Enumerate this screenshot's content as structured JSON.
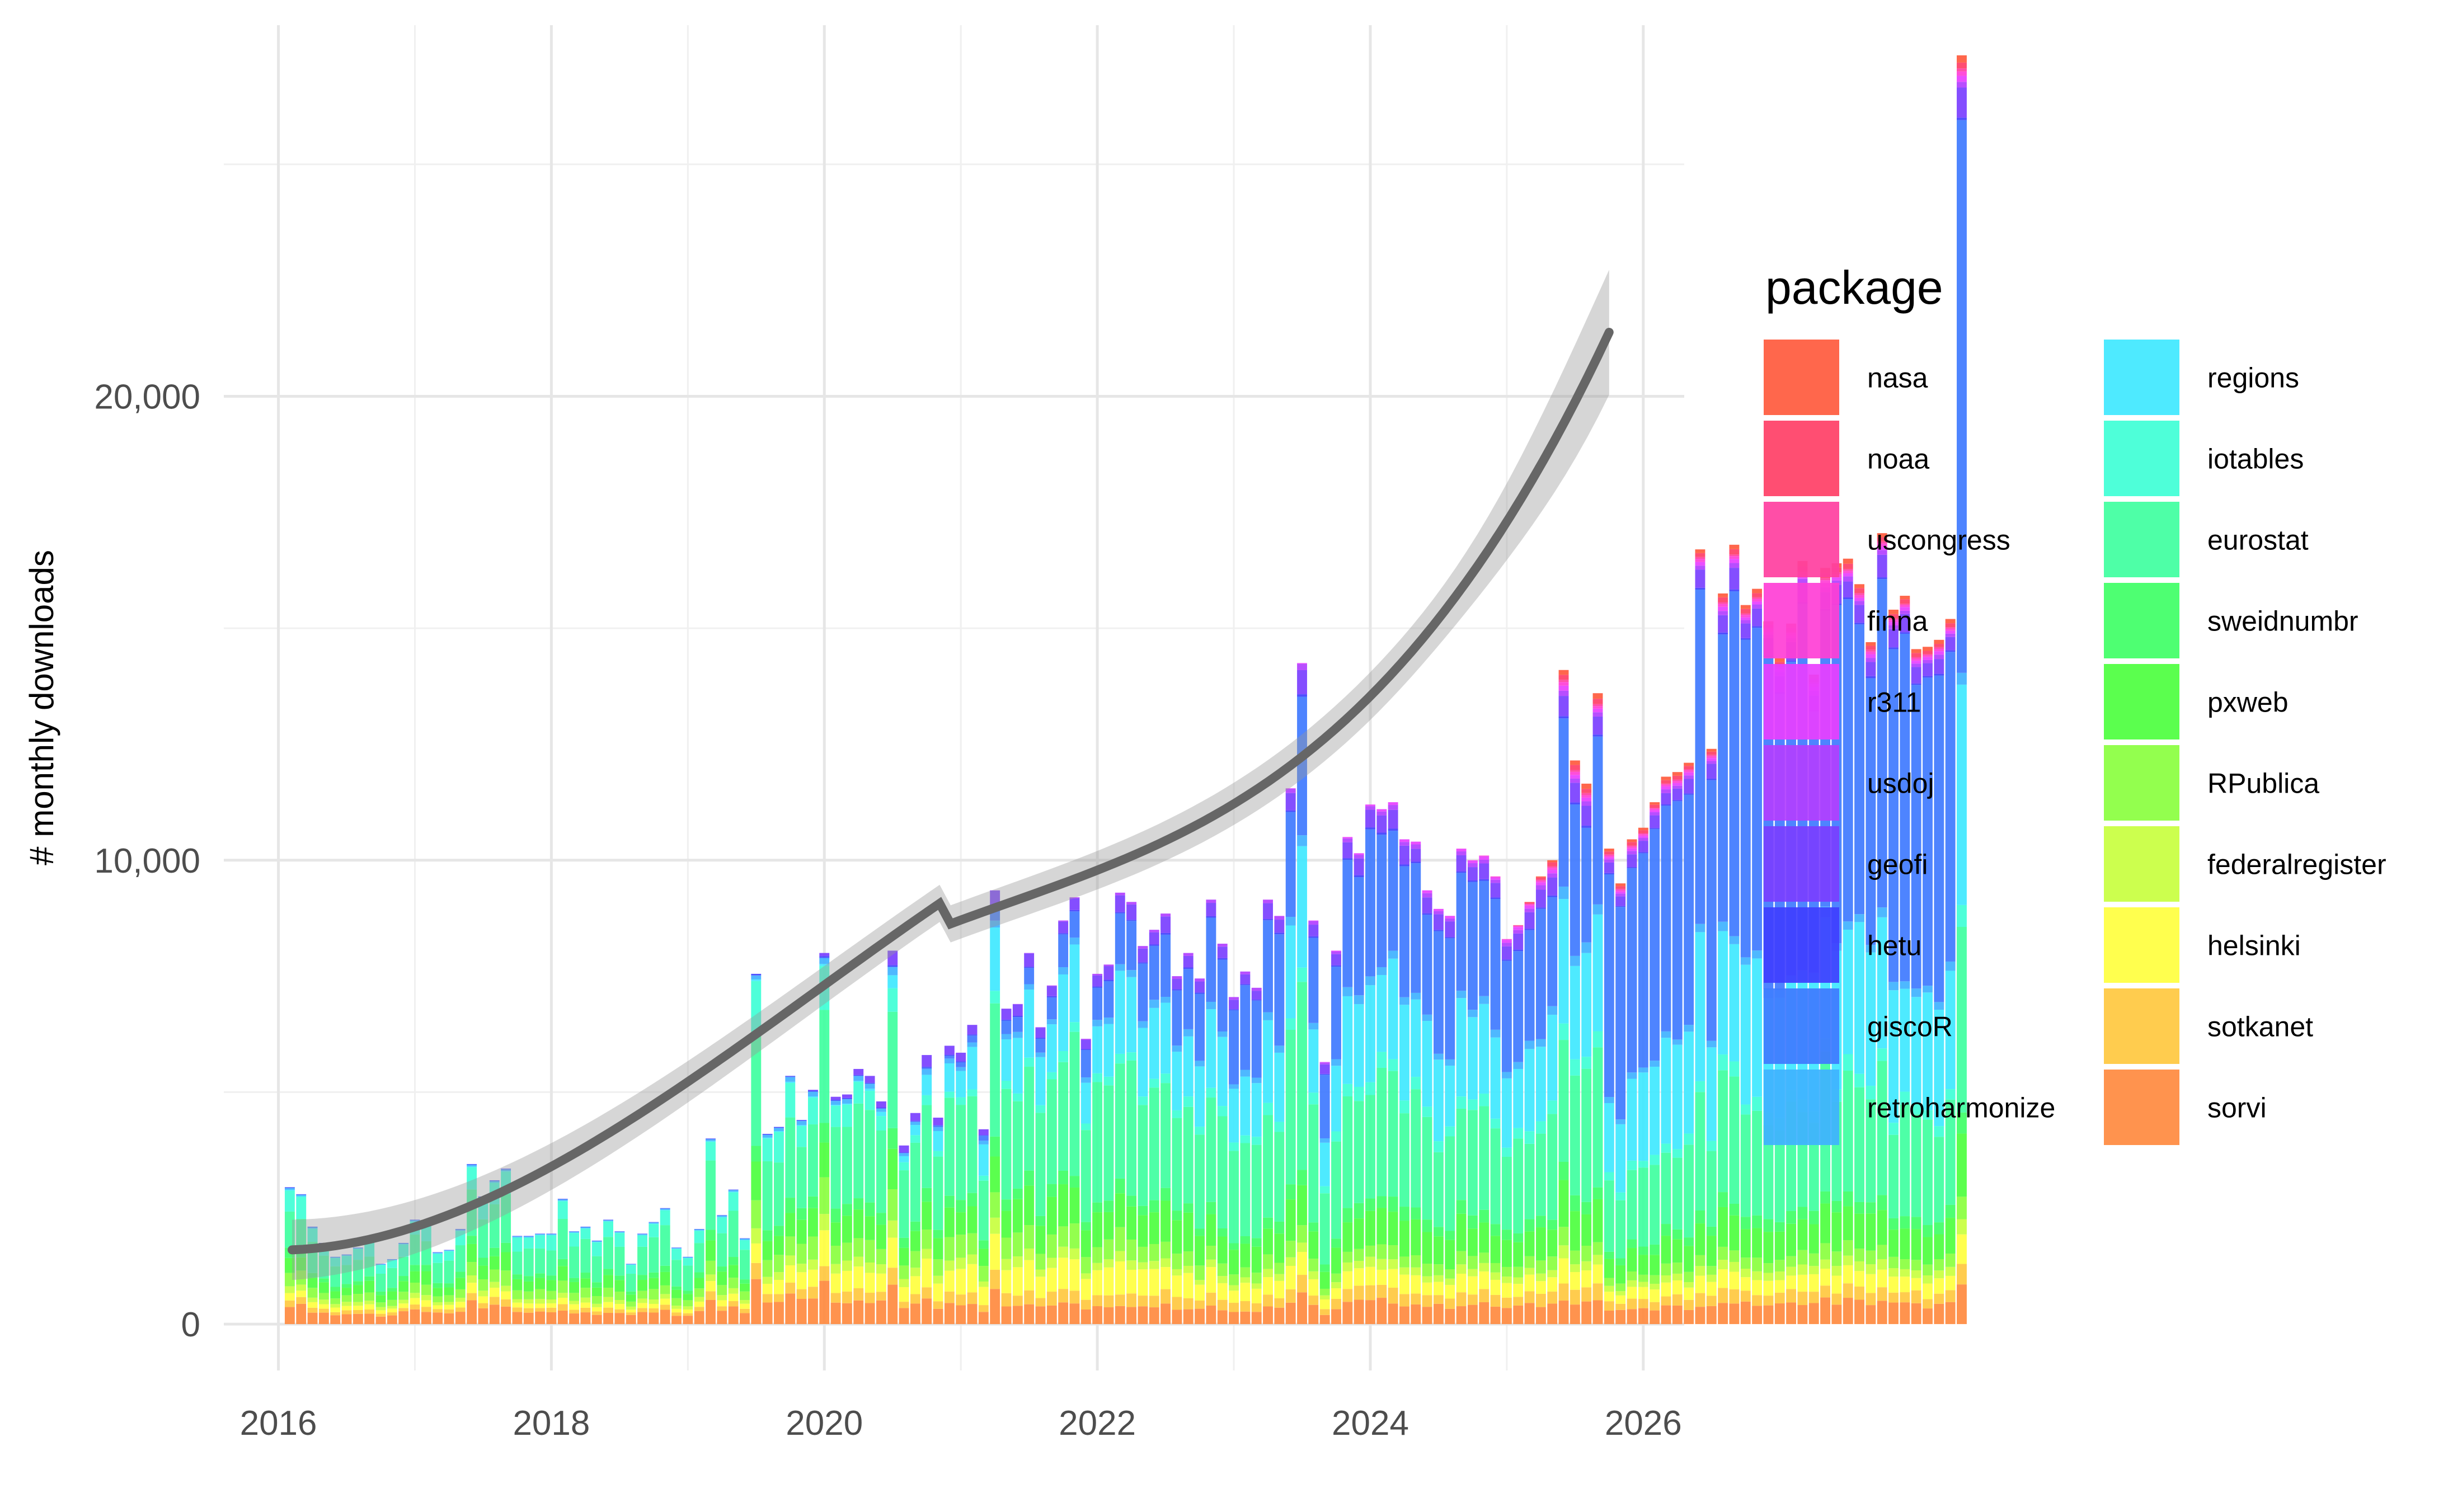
{
  "chart_data": {
    "type": "bar",
    "stacked": true,
    "title": "",
    "xlabel": "",
    "ylabel": "# monthly downloads",
    "xlim": [
      2015.6,
      2026.3
    ],
    "ylim": [
      -1000,
      28000
    ],
    "x_ticks": [
      2016,
      2018,
      2020,
      2022,
      2024,
      2026
    ],
    "x_tick_labels": [
      "2016",
      "2018",
      "2020",
      "2022",
      "2024",
      "2026"
    ],
    "y_ticks": [
      0,
      10000,
      20000
    ],
    "y_tick_labels": [
      "0",
      "10,000",
      "20,000"
    ],
    "grid": true,
    "legend": {
      "title": "package",
      "placement": "right",
      "columns": 2
    },
    "series": [
      {
        "name": "nasa",
        "color": "#FF5A3D"
      },
      {
        "name": "noaa",
        "color": "#FF3F66"
      },
      {
        "name": "uscongress",
        "color": "#FF3FA0"
      },
      {
        "name": "finna",
        "color": "#FF3FD6"
      },
      {
        "name": "r311",
        "color": "#E83FFF"
      },
      {
        "name": "usdoj",
        "color": "#B23FFF"
      },
      {
        "name": "geofi",
        "color": "#7A3FFF"
      },
      {
        "name": "hetu",
        "color": "#3F3FFF"
      },
      {
        "name": "giscoR",
        "color": "#3F7AFF"
      },
      {
        "name": "retroharmonize",
        "color": "#3FB2FF"
      },
      {
        "name": "regions",
        "color": "#3FE8FF"
      },
      {
        "name": "iotables",
        "color": "#3FFFD6"
      },
      {
        "name": "eurostat",
        "color": "#3FFFA0"
      },
      {
        "name": "sweidnumbr",
        "color": "#3FFF66"
      },
      {
        "name": "pxweb",
        "color": "#4DFF3F"
      },
      {
        "name": "RPublica",
        "color": "#8AFF3F"
      },
      {
        "name": "federalregister",
        "color": "#C8FF3F"
      },
      {
        "name": "helsinki",
        "color": "#FFFF3F"
      },
      {
        "name": "sotkanet",
        "color": "#FFC83F"
      },
      {
        "name": "sorvi",
        "color": "#FF8A3F"
      }
    ],
    "stack_order_bottom_to_top": [
      "sorvi",
      "sotkanet",
      "helsinki",
      "federalregister",
      "RPublica",
      "pxweb",
      "sweidnumbr",
      "eurostat",
      "iotables",
      "regions",
      "retroharmonize",
      "giscoR",
      "hetu",
      "geofi",
      "usdoj",
      "r311",
      "finna",
      "uscongress",
      "noaa",
      "nasa"
    ],
    "x_start": "2016-02",
    "bar_totals": [
      2950,
      2800,
      2100,
      1750,
      1450,
      1500,
      1650,
      1800,
      1300,
      1400,
      1750,
      2250,
      2150,
      1550,
      1600,
      2050,
      3450,
      2750,
      3100,
      3350,
      1900,
      1900,
      1950,
      1950,
      2700,
      2000,
      2100,
      1800,
      2250,
      2000,
      1300,
      1950,
      2200,
      2500,
      1650,
      1450,
      2050,
      4000,
      2350,
      2900,
      1850,
      7550,
      4100,
      4250,
      5350,
      4400,
      5050,
      8000,
      4900,
      4950,
      5500,
      5350,
      4800,
      8050,
      3850,
      4550,
      5800,
      4450,
      6000,
      5850,
      6450,
      4200,
      9350,
      6800,
      6900,
      8000,
      6400,
      7300,
      8700,
      9200,
      6150,
      7550,
      7750,
      9300,
      9100,
      8150,
      8500,
      8850,
      7500,
      8000,
      7450,
      9150,
      8200,
      7050,
      7600,
      7250,
      9150,
      8800,
      11550,
      14250,
      8700,
      5650,
      8050,
      10500,
      10150,
      11200,
      11100,
      11250,
      10450,
      10400,
      9350,
      8950,
      8800,
      10250,
      10000,
      10100,
      9650,
      8300,
      8600,
      9100,
      9650,
      10000,
      14100,
      12150,
      11650,
      13600,
      10250,
      9500,
      10450,
      10700,
      11250,
      11800,
      11900,
      12100,
      16700,
      12400,
      15750,
      16800,
      15500,
      15850,
      15150,
      14350,
      15100,
      16450,
      14000,
      16300,
      16400,
      16500,
      15950,
      14700,
      17050,
      15400,
      15700,
      14550,
      14600,
      14750,
      15200,
      27350
    ]
  }
}
